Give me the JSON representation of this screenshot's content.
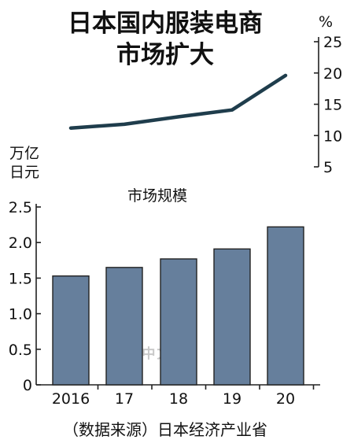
{
  "title_lines": [
    "日本国内服装电商",
    "市场扩大"
  ],
  "source": "（数据来源）日本经济产业省",
  "watermark": "日经中文网",
  "chart_data": [
    {
      "type": "line",
      "x": [
        "2016",
        "17",
        "18",
        "19",
        "20"
      ],
      "values": [
        11.2,
        11.8,
        13.0,
        14.1,
        19.6
      ],
      "unit": "%",
      "ylim": [
        5,
        25
      ],
      "yticks": [
        "5",
        "10",
        "15",
        "20",
        "25"
      ],
      "axis_side": "right",
      "color": "#1f3d4c"
    },
    {
      "type": "bar",
      "title": "市场规模",
      "categories": [
        "2016",
        "17",
        "18",
        "19",
        "20"
      ],
      "values": [
        1.53,
        1.65,
        1.77,
        1.91,
        2.22
      ],
      "unit_lines": [
        "万亿",
        "日元"
      ],
      "ylim": [
        0,
        2.5
      ],
      "yticks": [
        "0",
        "0.5",
        "1.0",
        "1.5",
        "2.0",
        "2.5"
      ],
      "bar_color": "#667f9c",
      "grid": false
    }
  ]
}
